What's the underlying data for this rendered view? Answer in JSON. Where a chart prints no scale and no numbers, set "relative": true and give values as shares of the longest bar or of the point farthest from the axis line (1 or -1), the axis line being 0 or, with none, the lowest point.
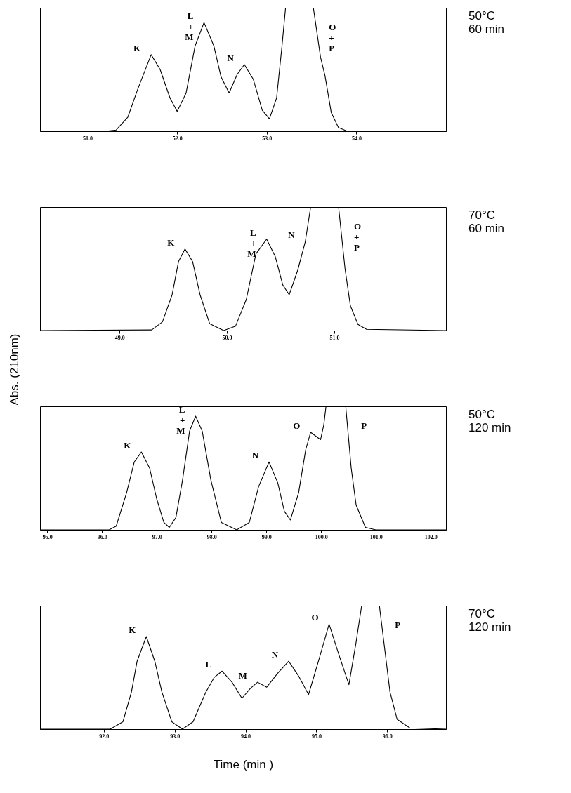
{
  "chart_data": [
    {
      "type": "line",
      "relative": true,
      "xlim": [
        50.47,
        55.0
      ],
      "xticks": [
        {
          "value": 51,
          "label": "51.0"
        },
        {
          "value": 52,
          "label": "52.0"
        },
        {
          "value": 53,
          "label": "53.0"
        },
        {
          "value": 54,
          "label": "54.0"
        }
      ],
      "x": [
        50.47,
        51.2,
        51.32,
        51.45,
        51.56,
        51.71,
        51.81,
        51.92,
        52.0,
        52.1,
        52.2,
        52.3,
        52.41,
        52.49,
        52.58,
        52.67,
        52.75,
        52.85,
        52.95,
        53.03,
        53.11,
        53.17,
        53.21,
        53.52,
        53.6,
        53.65,
        53.72,
        53.8,
        53.9,
        55.0
      ],
      "series": [
        {
          "color": "#000000",
          "values": [
            0,
            0,
            0.01,
            0.115,
            0.34,
            0.62,
            0.5,
            0.27,
            0.16,
            0.31,
            0.69,
            0.88,
            0.69,
            0.44,
            0.31,
            0.46,
            0.54,
            0.42,
            0.17,
            0.1,
            0.27,
            0.69,
            1,
            1,
            0.6,
            0.45,
            0.15,
            0.03,
            0,
            0
          ]
        }
      ],
      "annotations": [
        "50°C 60 min",
        {
          "text": "K",
          "x": 51.71,
          "y": 0.62
        },
        {
          "text": "L + M",
          "x": 52.3,
          "y": 0.88
        },
        {
          "text": "N",
          "x": 52.75,
          "y": 0.54
        },
        {
          "text": "O + P",
          "x": 53.52,
          "y": 1
        }
      ]
    },
    {
      "type": "line",
      "ylabel": "Abs. (210nm)",
      "relative": true,
      "xlim": [
        48.26,
        52.04
      ],
      "xticks": [
        {
          "value": 49,
          "label": "49.0"
        },
        {
          "value": 50,
          "label": "50.0"
        },
        {
          "value": 51,
          "label": "51.0"
        }
      ],
      "x": [
        48.26,
        49.3,
        49.4,
        49.49,
        49.55,
        49.61,
        49.68,
        49.75,
        49.84,
        49.97,
        50.08,
        50.18,
        50.27,
        50.37,
        50.45,
        50.52,
        50.58,
        50.66,
        50.73,
        50.78,
        51.04,
        51.1,
        51.15,
        51.22,
        51.3,
        52.04
      ],
      "series": [
        {
          "color": "#000000",
          "values": [
            0,
            0.005,
            0.07,
            0.29,
            0.56,
            0.66,
            0.56,
            0.29,
            0.055,
            0,
            0.035,
            0.25,
            0.62,
            0.74,
            0.6,
            0.37,
            0.29,
            0.49,
            0.72,
            1,
            1,
            0.5,
            0.2,
            0.05,
            0.01,
            0
          ]
        }
      ],
      "annotations": [
        "70°C 60 min",
        {
          "text": "K",
          "x": 49.61,
          "y": 0.66
        },
        {
          "text": "L + M",
          "x": 50.37,
          "y": 0.74
        },
        {
          "text": "N",
          "x": 50.73,
          "y": 0.72
        },
        {
          "text": "O + P",
          "x": 51.04,
          "y": 1
        }
      ]
    },
    {
      "type": "line",
      "relative": true,
      "xlim": [
        94.87,
        102.28
      ],
      "xticks": [
        {
          "value": 95,
          "label": "95.0"
        },
        {
          "value": 96,
          "label": "96.0"
        },
        {
          "value": 97,
          "label": "97.0"
        },
        {
          "value": 98,
          "label": "98.0"
        },
        {
          "value": 99,
          "label": "99.0"
        },
        {
          "value": 100,
          "label": "100.0"
        },
        {
          "value": 101,
          "label": "101.0"
        },
        {
          "value": 102,
          "label": "102.0"
        }
      ],
      "x": [
        94.87,
        96.13,
        96.26,
        96.45,
        96.59,
        96.72,
        96.87,
        97.0,
        97.13,
        97.23,
        97.35,
        97.47,
        97.6,
        97.71,
        97.83,
        97.99,
        98.18,
        98.46,
        98.69,
        98.86,
        99.05,
        99.21,
        99.33,
        99.44,
        99.59,
        99.72,
        99.81,
        99.9,
        99.99,
        100.05,
        100.09,
        100.45,
        100.55,
        100.64,
        100.81,
        101.0,
        102.28
      ],
      "series": [
        {
          "color": "#000000",
          "values": [
            0,
            0,
            0.03,
            0.3,
            0.55,
            0.63,
            0.5,
            0.25,
            0.06,
            0.02,
            0.1,
            0.4,
            0.8,
            0.92,
            0.8,
            0.4,
            0.06,
            0,
            0.06,
            0.35,
            0.55,
            0.38,
            0.15,
            0.08,
            0.3,
            0.65,
            0.79,
            0.76,
            0.73,
            0.85,
            1,
            1,
            0.5,
            0.2,
            0.02,
            0,
            0
          ]
        }
      ],
      "annotations": [
        "50°C 120 min",
        {
          "text": "K",
          "x": 96.72,
          "y": 0.63
        },
        {
          "text": "L + M",
          "x": 97.71,
          "y": 0.92
        },
        {
          "text": "N",
          "x": 99.05,
          "y": 0.55
        },
        {
          "text": "O",
          "x": 99.81,
          "y": 0.79
        },
        {
          "text": "P",
          "x": 100.45,
          "y": 1
        }
      ]
    },
    {
      "type": "line",
      "xlabel": "Time (min )",
      "relative": true,
      "xlim": [
        91.1,
        96.83
      ],
      "xticks": [
        {
          "value": 92,
          "label": "92.0"
        },
        {
          "value": 93,
          "label": "93.0"
        },
        {
          "value": 94,
          "label": "94.0"
        },
        {
          "value": 95,
          "label": "95.0"
        },
        {
          "value": 96,
          "label": "96.0"
        }
      ],
      "x": [
        91.1,
        92.09,
        92.27,
        92.39,
        92.47,
        92.6,
        92.72,
        92.82,
        92.96,
        93.11,
        93.26,
        93.44,
        93.56,
        93.67,
        93.81,
        93.95,
        94.07,
        94.17,
        94.3,
        94.45,
        94.61,
        94.75,
        94.89,
        95.03,
        95.18,
        95.32,
        95.46,
        95.56,
        95.64,
        95.89,
        96.04,
        96.14,
        96.32,
        96.83
      ],
      "series": [
        {
          "color": "#000000",
          "values": [
            0,
            0,
            0.06,
            0.3,
            0.55,
            0.75,
            0.55,
            0.3,
            0.06,
            0,
            0.06,
            0.3,
            0.42,
            0.47,
            0.38,
            0.25,
            0.33,
            0.38,
            0.34,
            0.45,
            0.55,
            0.43,
            0.28,
            0.55,
            0.85,
            0.6,
            0.36,
            0.7,
            1,
            1,
            0.3,
            0.08,
            0.01,
            0
          ]
        }
      ],
      "annotations": [
        "70°C 120 min",
        {
          "text": "K",
          "x": 92.6,
          "y": 0.75
        },
        {
          "text": "L",
          "x": 93.67,
          "y": 0.47
        },
        {
          "text": "M",
          "x": 94.17,
          "y": 0.38
        },
        {
          "text": "N",
          "x": 94.61,
          "y": 0.55
        },
        {
          "text": "O",
          "x": 95.18,
          "y": 0.85
        },
        {
          "text": "P",
          "x": 95.89,
          "y": 1
        }
      ]
    }
  ]
}
